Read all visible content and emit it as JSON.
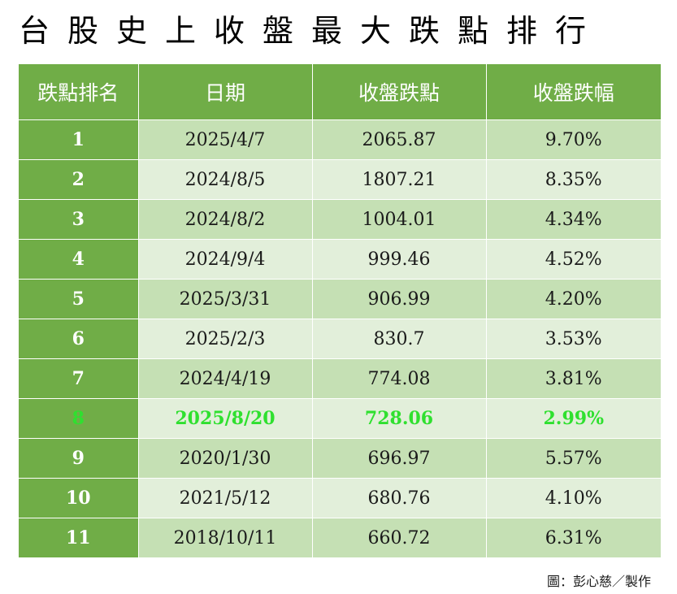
{
  "title": "台股史上收盤最大跌點排行",
  "columns": [
    "跌點排名",
    "日期",
    "收盤跌點",
    "收盤跌幅"
  ],
  "rows": [
    {
      "rank": "1",
      "date": "2025/4/7",
      "points": "2065.87",
      "percent": "9.70%"
    },
    {
      "rank": "2",
      "date": "2024/8/5",
      "points": "1807.21",
      "percent": "8.35%"
    },
    {
      "rank": "3",
      "date": "2024/8/2",
      "points": "1004.01",
      "percent": "4.34%"
    },
    {
      "rank": "4",
      "date": "2024/9/4",
      "points": "999.46",
      "percent": "4.52%"
    },
    {
      "rank": "5",
      "date": "2025/3/31",
      "points": "906.99",
      "percent": "4.20%"
    },
    {
      "rank": "6",
      "date": "2025/2/3",
      "points": "830.7",
      "percent": "3.53%"
    },
    {
      "rank": "7",
      "date": "2024/4/19",
      "points": "774.08",
      "percent": "3.81%"
    },
    {
      "rank": "8",
      "date": "2025/8/20",
      "points": "728.06",
      "percent": "2.99%",
      "highlight": true
    },
    {
      "rank": "9",
      "date": "2020/1/30",
      "points": "696.97",
      "percent": "5.57%"
    },
    {
      "rank": "10",
      "date": "2021/5/12",
      "points": "680.76",
      "percent": "4.10%"
    },
    {
      "rank": "11",
      "date": "2018/10/11",
      "points": "660.72",
      "percent": "6.31%"
    }
  ],
  "credit": "圖：彭心慈／製作",
  "colors": {
    "header_green": "#70ad47",
    "row_dark": "#c5e0b4",
    "row_light": "#e2efda",
    "highlight_text": "#2fe02f"
  }
}
